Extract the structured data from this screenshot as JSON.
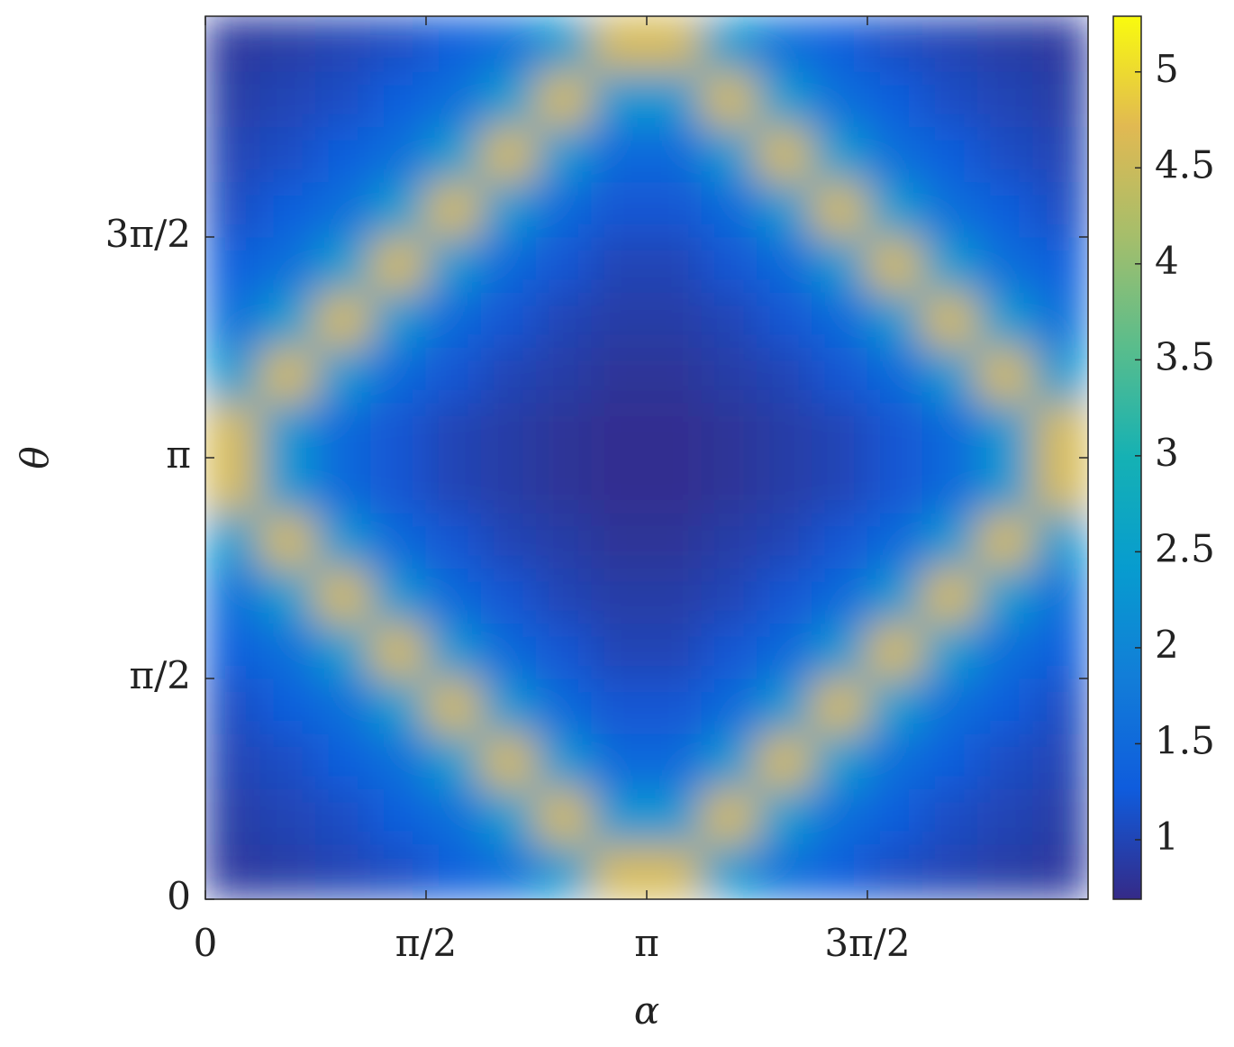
{
  "chart_data": {
    "type": "heatmap",
    "xlabel": "α",
    "ylabel": "θ",
    "xlim": [
      0,
      6.2832
    ],
    "ylim": [
      0,
      6.2832
    ],
    "xticks": [
      0,
      {
        "value": 1.5708,
        "label": "π/2"
      },
      {
        "value": 3.1416,
        "label": "π"
      },
      {
        "value": 4.7124,
        "label": "3π/2"
      }
    ],
    "yticks": [
      0,
      {
        "value": 1.5708,
        "label": "π/2"
      },
      {
        "value": 3.1416,
        "label": "π"
      },
      {
        "value": 4.7124,
        "label": "3π/2"
      }
    ],
    "colormap": "parula",
    "clim": [
      0.69,
      5.29
    ],
    "colorbar_ticks": [
      1,
      1.5,
      2,
      2.5,
      3,
      3.5,
      4,
      4.5,
      5
    ],
    "z": [
      [
        0.85,
        0.9,
        1.0,
        1.1,
        1.3,
        1.6,
        2.4,
        4.6,
        4.6,
        2.4,
        1.6,
        1.3,
        1.1,
        1.0,
        0.9,
        0.85
      ],
      [
        0.9,
        1.0,
        1.1,
        1.3,
        1.6,
        2.4,
        4.6,
        2.3,
        2.3,
        4.6,
        2.4,
        1.6,
        1.3,
        1.1,
        1.0,
        0.9
      ],
      [
        1.0,
        1.1,
        1.3,
        1.6,
        2.4,
        4.6,
        2.3,
        1.5,
        1.5,
        2.3,
        4.6,
        2.4,
        1.6,
        1.3,
        1.1,
        1.0
      ],
      [
        1.1,
        1.3,
        1.6,
        2.4,
        4.6,
        2.3,
        1.5,
        1.2,
        1.2,
        1.5,
        2.3,
        4.6,
        2.4,
        1.6,
        1.3,
        1.1
      ],
      [
        1.3,
        1.6,
        2.4,
        4.6,
        2.3,
        1.5,
        1.2,
        1.0,
        1.0,
        1.2,
        1.5,
        2.3,
        4.6,
        2.4,
        1.6,
        1.3
      ],
      [
        1.6,
        2.4,
        4.6,
        2.3,
        1.5,
        1.2,
        1.0,
        0.9,
        0.9,
        1.0,
        1.2,
        1.5,
        2.3,
        4.6,
        2.4,
        1.6
      ],
      [
        2.4,
        4.6,
        2.3,
        1.5,
        1.2,
        1.0,
        0.9,
        0.8,
        0.8,
        0.9,
        1.0,
        1.2,
        1.5,
        2.3,
        4.6,
        2.4
      ],
      [
        4.6,
        2.3,
        1.5,
        1.2,
        1.0,
        0.9,
        0.8,
        0.75,
        0.75,
        0.8,
        0.9,
        1.0,
        1.2,
        1.5,
        2.3,
        4.6
      ],
      [
        4.6,
        2.3,
        1.5,
        1.2,
        1.0,
        0.9,
        0.8,
        0.75,
        0.75,
        0.8,
        0.9,
        1.0,
        1.2,
        1.5,
        2.3,
        4.6
      ],
      [
        2.4,
        4.6,
        2.3,
        1.5,
        1.2,
        1.0,
        0.9,
        0.8,
        0.8,
        0.9,
        1.0,
        1.2,
        1.5,
        2.3,
        4.6,
        2.4
      ],
      [
        1.6,
        2.4,
        4.6,
        2.3,
        1.5,
        1.2,
        1.0,
        0.9,
        0.9,
        1.0,
        1.2,
        1.5,
        2.3,
        4.6,
        2.4,
        1.6
      ],
      [
        1.3,
        1.6,
        2.4,
        4.6,
        2.3,
        1.5,
        1.2,
        1.0,
        1.0,
        1.2,
        1.5,
        2.3,
        4.6,
        2.4,
        1.6,
        1.3
      ],
      [
        1.1,
        1.3,
        1.6,
        2.4,
        4.6,
        2.3,
        1.5,
        1.2,
        1.2,
        1.5,
        2.3,
        4.6,
        2.4,
        1.6,
        1.3,
        1.1
      ],
      [
        1.0,
        1.1,
        1.3,
        1.6,
        2.4,
        4.6,
        2.3,
        1.5,
        1.5,
        2.3,
        4.6,
        2.4,
        1.6,
        1.3,
        1.1,
        1.0
      ],
      [
        0.9,
        1.0,
        1.1,
        1.3,
        1.6,
        2.4,
        4.6,
        2.3,
        2.3,
        4.6,
        2.4,
        1.6,
        1.3,
        1.1,
        1.0,
        0.9
      ],
      [
        0.85,
        0.9,
        1.0,
        1.1,
        1.3,
        1.6,
        2.4,
        4.6,
        4.6,
        2.4,
        1.6,
        1.3,
        1.1,
        1.0,
        0.9,
        0.85
      ]
    ]
  }
}
